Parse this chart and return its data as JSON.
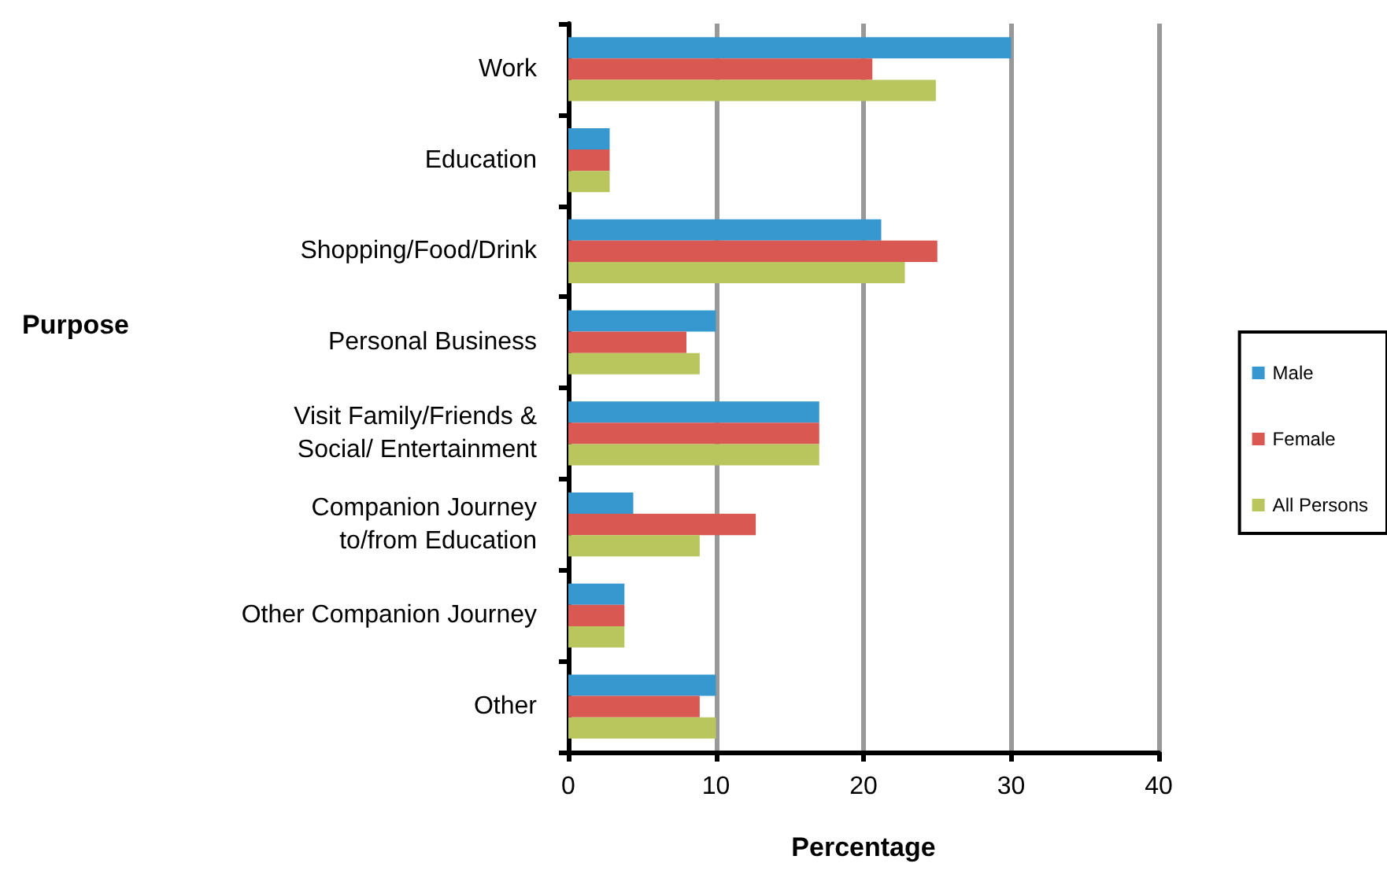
{
  "chart_data": {
    "type": "bar",
    "orientation": "horizontal",
    "xlabel": "Percentage",
    "ylabel": "Purpose",
    "categories": [
      "Work",
      "Education",
      "Shopping/Food/Drink",
      "Personal Business",
      "Visit Family/Friends &\nSocial/ Entertainment",
      "Companion Journey\nto/from Education",
      "Other Companion Journey",
      "Other"
    ],
    "series": [
      {
        "name": "Male",
        "color": "#3797cf",
        "values": [
          30,
          2.8,
          21.2,
          10,
          17,
          4.4,
          3.8,
          10
        ]
      },
      {
        "name": "Female",
        "color": "#d95852",
        "values": [
          20.6,
          2.8,
          25,
          8,
          17,
          12.7,
          3.8,
          8.9
        ]
      },
      {
        "name": "All Persons",
        "color": "#b8c65d",
        "values": [
          24.9,
          2.8,
          22.8,
          8.9,
          17,
          8.9,
          3.8,
          10
        ]
      }
    ],
    "xlim": [
      0,
      40
    ],
    "xticks": [
      0,
      10,
      20,
      30,
      40
    ],
    "grid": "x",
    "legend": "right"
  }
}
